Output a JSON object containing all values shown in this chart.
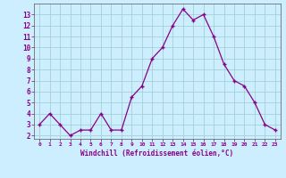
{
  "x": [
    0,
    1,
    2,
    3,
    4,
    5,
    6,
    7,
    8,
    9,
    10,
    11,
    12,
    13,
    14,
    15,
    16,
    17,
    18,
    19,
    20,
    21,
    22,
    23
  ],
  "y": [
    3,
    4,
    3,
    2,
    2.5,
    2.5,
    4,
    2.5,
    2.5,
    5.5,
    6.5,
    9,
    10,
    12,
    13.5,
    12.5,
    13,
    11,
    8.5,
    7,
    6.5,
    5,
    3,
    2.5
  ],
  "line_color": "#880088",
  "marker": "+",
  "marker_size": 4,
  "bg_color": "#cceeff",
  "grid_color": "#99cccc",
  "xlabel": "Windchill (Refroidissement éolien,°C)",
  "ylabel_ticks": [
    2,
    3,
    4,
    5,
    6,
    7,
    8,
    9,
    10,
    11,
    12,
    13
  ],
  "xlabel_ticks": [
    0,
    1,
    2,
    3,
    4,
    5,
    6,
    7,
    8,
    9,
    10,
    11,
    12,
    13,
    14,
    15,
    16,
    17,
    18,
    19,
    20,
    21,
    22,
    23
  ],
  "ylim": [
    1.7,
    14.0
  ],
  "xlim": [
    -0.5,
    23.5
  ],
  "tick_color": "#880088",
  "axis_color": "#880088",
  "label_color": "#880088",
  "spine_color": "#555555"
}
